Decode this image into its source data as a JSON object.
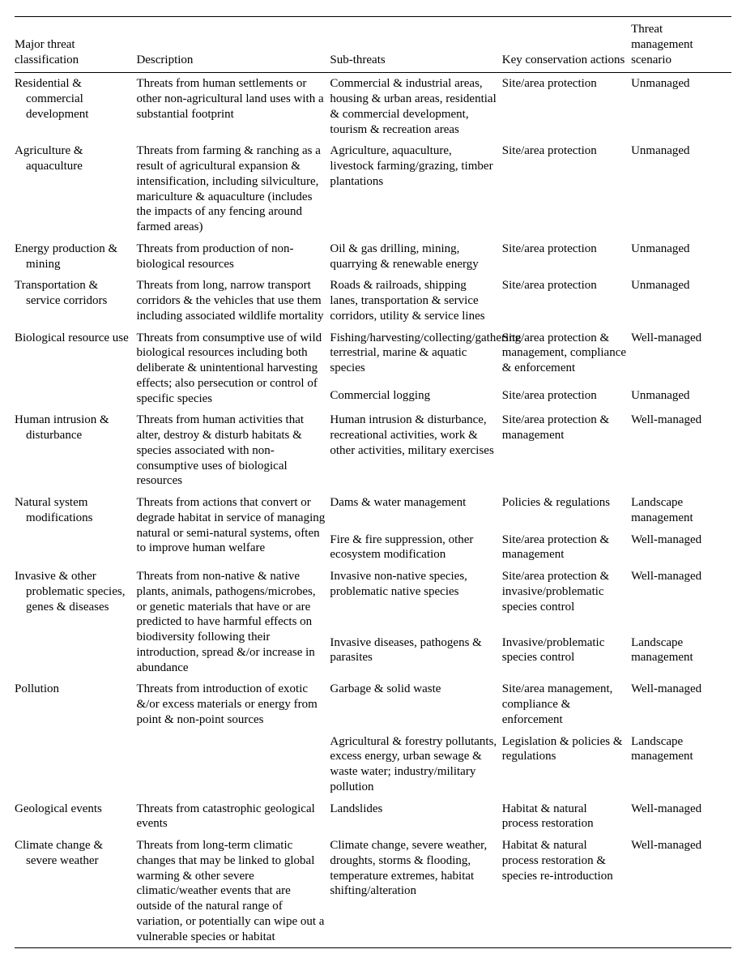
{
  "headers": {
    "c1": "Major threat classification",
    "c2": "Description",
    "c3": "Sub-threats",
    "c4": "Key conservation actions",
    "c5": "Threat management scenario"
  },
  "rows": [
    {
      "classification": "Residential & commercial development",
      "description": "Threats from human settlements or other non-agricultural land uses with a substantial footprint",
      "sub": [
        {
          "subthreats": "Commercial & industrial areas, housing & urban areas, residential & commercial development, tourism & recreation areas",
          "actions": "Site/area protection",
          "scenario": "Unmanaged"
        }
      ]
    },
    {
      "classification": "Agriculture & aquaculture",
      "description": "Threats from farming & ranching as a result of agricultural expansion & intensification, including silviculture, mariculture & aquaculture (includes the impacts of any fencing around farmed areas)",
      "sub": [
        {
          "subthreats": "Agriculture, aquaculture, livestock farming/grazing, timber plantations",
          "actions": "Site/area protection",
          "scenario": "Unmanaged"
        }
      ]
    },
    {
      "classification": "Energy production & mining",
      "description": "Threats from production of non-biological resources",
      "sub": [
        {
          "subthreats": "Oil & gas drilling, mining, quarrying & renewable energy",
          "actions": "Site/area protection",
          "scenario": "Unmanaged"
        }
      ]
    },
    {
      "classification": "Transportation & service corridors",
      "description": "Threats from long, narrow transport corridors & the vehicles that use them including associated wildlife mortality",
      "sub": [
        {
          "subthreats": "Roads & railroads, shipping lanes, transportation & service corridors, utility & service lines",
          "actions": "Site/area protection",
          "scenario": "Unmanaged"
        }
      ]
    },
    {
      "classification": "Biological resource use",
      "description": "Threats from consumptive use of wild biological resources including both deliberate & unintentional harvesting effects; also persecution or control of specific species",
      "sub": [
        {
          "subthreats": "Fishing/harvesting/collecting/gathering terrestrial, marine & aquatic species",
          "actions": "Site/area protection & management, compliance & enforcement",
          "scenario": "Well-managed"
        },
        {
          "subthreats": "Commercial logging",
          "actions": "Site/area protection",
          "scenario": "Unmanaged"
        }
      ]
    },
    {
      "classification": "Human intrusion & disturbance",
      "description": "Threats from human activities that alter, destroy & disturb habitats & species associated with non-consumptive uses of biological resources",
      "sub": [
        {
          "subthreats": "Human intrusion & disturbance, recreational activities, work & other activities, military exercises",
          "actions": "Site/area protection & management",
          "scenario": "Well-managed"
        }
      ]
    },
    {
      "classification": "Natural system modifications",
      "description": "Threats from actions that convert or degrade habitat in service of managing natural or semi-natural systems, often to improve human welfare",
      "sub": [
        {
          "subthreats": "Dams & water management",
          "actions": "Policies & regulations",
          "scenario": "Landscape management"
        },
        {
          "subthreats": "Fire & fire suppression, other ecosystem modification",
          "actions": "Site/area protection & management",
          "scenario": "Well-managed"
        }
      ]
    },
    {
      "classification": "Invasive & other problematic species, genes & diseases",
      "description": "Threats from non-native & native plants, animals, pathogens/microbes, or genetic materials that have or are predicted to have harmful effects on biodiversity following their introduction, spread &/or increase in abundance",
      "sub": [
        {
          "subthreats": "Invasive non-native species, problematic native species",
          "actions": "Site/area protection & invasive/problematic species control",
          "scenario": "Well-managed"
        },
        {
          "subthreats": "Invasive diseases, pathogens & parasites",
          "actions": "Invasive/problematic species control",
          "scenario": "Landscape management"
        }
      ]
    },
    {
      "classification": "Pollution",
      "description": "Threats from introduction of exotic &/or excess materials or energy from point & non-point sources",
      "sub": [
        {
          "subthreats": "Garbage & solid waste",
          "actions": "Site/area management, compliance & enforcement",
          "scenario": "Well-managed"
        },
        {
          "subthreats": "Agricultural & forestry pollutants, excess energy, urban sewage & waste water; industry/military pollution",
          "actions": "Legislation & policies & regulations",
          "scenario": "Landscape management"
        }
      ]
    },
    {
      "classification": "Geological events",
      "description": "Threats from catastrophic geological events",
      "sub": [
        {
          "subthreats": "Landslides",
          "actions": "Habitat & natural process restoration",
          "scenario": "Well-managed"
        }
      ]
    },
    {
      "classification": "Climate change & severe weather",
      "description": "Threats from long-term climatic changes that may be linked to global warming & other severe climatic/weather events that are outside of the natural range of variation, or potentially can wipe out a vulnerable species or habitat",
      "sub": [
        {
          "subthreats": "Climate change, severe weather, droughts, storms & flooding, temperature extremes, habitat shifting/alteration",
          "actions": "Habitat & natural process restoration & species re-introduction",
          "scenario": "Well-managed"
        }
      ]
    }
  ]
}
